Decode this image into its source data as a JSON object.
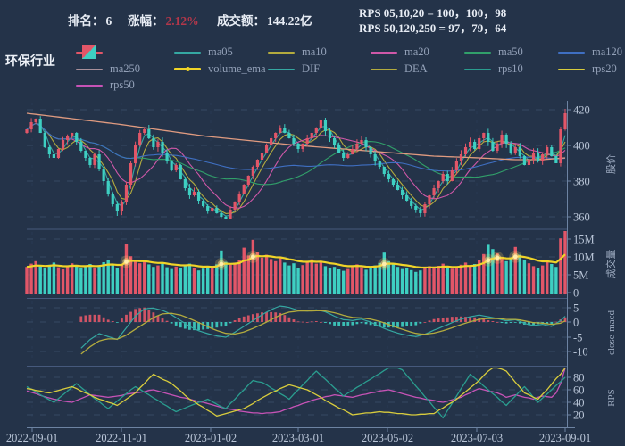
{
  "meta": {
    "series_title": "环保行业"
  },
  "header": {
    "rank_label": "排名：",
    "rank_value": "6",
    "change_label": "涨幅：",
    "change_value": "2.12%",
    "change_color": "#b3374a",
    "turnover_label": "成交额：",
    "turnover_value": "144.22亿",
    "rps_line1": "RPS 05,10,20 = 100，100，98",
    "rps_line2": "RPS 50,120,250 = 97，79，64"
  },
  "colors": {
    "background": "#243349",
    "up_candle": "#e25668",
    "down_candle": "#3ecfc2",
    "ma05": "#35a8a2",
    "ma10": "#b3ab3e",
    "ma20": "#cf58a8",
    "ma50": "#31a06a",
    "ma120": "#3f6fc2",
    "ma250": "#e09b80",
    "ma250_legend": "#a9909a",
    "volume_ema": "#f0d428",
    "dif": "#35a8a2",
    "dea": "#b3ab3e",
    "rps10": "#2a9d8f",
    "rps20": "#d8cc3d",
    "rps50": "#c653b6",
    "grid": "#3a4c68",
    "vgrid": "#2c3d58",
    "spine": "#6d83a2",
    "separator": "#46597c",
    "tick_text": "#b9c5d7"
  },
  "legend": {
    "items": [
      {
        "label": "",
        "kind": "candle",
        "row": 0,
        "col": 0
      },
      {
        "label": "ma05",
        "kind": "line",
        "color": "#35a8a2",
        "row": 0,
        "col": 1
      },
      {
        "label": "ma10",
        "kind": "line",
        "color": "#b3ab3e",
        "row": 0,
        "col": 2
      },
      {
        "label": "ma20",
        "kind": "line",
        "color": "#cf58a8",
        "row": 0,
        "col": 3
      },
      {
        "label": "ma50",
        "kind": "line",
        "color": "#31a06a",
        "row": 0,
        "col": 4
      },
      {
        "label": "ma120",
        "kind": "line",
        "color": "#3f6fc2",
        "row": 0,
        "col": 5
      },
      {
        "label": "ma250",
        "kind": "line",
        "color": "#a9909a",
        "row": 1,
        "col": 0
      },
      {
        "label": "volume_ema",
        "kind": "line-marker",
        "color": "#f0d428",
        "row": 1,
        "col": 1
      },
      {
        "label": "DIF",
        "kind": "line",
        "color": "#35a8a2",
        "row": 1,
        "col": 2
      },
      {
        "label": "DEA",
        "kind": "line",
        "color": "#b3ab3e",
        "row": 1,
        "col": 3
      },
      {
        "label": "rps10",
        "kind": "line",
        "color": "#2a9d8f",
        "row": 1,
        "col": 4
      },
      {
        "label": "rps20",
        "kind": "line",
        "color": "#d8cc3d",
        "row": 1,
        "col": 5
      },
      {
        "label": "rps50",
        "kind": "line",
        "color": "#c653b6",
        "row": 2,
        "col": 0
      }
    ]
  },
  "chart_data": {
    "type": "candlestick-multipanel",
    "x_tick_labels": [
      "2022-09-01",
      "2022-11-01",
      "2023-01-02",
      "2023-03-01",
      "2023-05-02",
      "2023-07-03",
      "2023-09-01"
    ],
    "panels": [
      {
        "name": "price",
        "axis_title": "股价",
        "y_ticks": [
          420,
          400,
          380,
          360
        ],
        "close": [
          409,
          413,
          415,
          407,
          399,
          395,
          393,
          398,
          403,
          405,
          407,
          402,
          397,
          393,
          389,
          395,
          387,
          380,
          373,
          367,
          363,
          368,
          378,
          390,
          400,
          407,
          409,
          404,
          399,
          402,
          396,
          391,
          386,
          389,
          381,
          376,
          372,
          374,
          369,
          366,
          363,
          365,
          362,
          360,
          359,
          364,
          368,
          373,
          378,
          383,
          388,
          392,
          396,
          400,
          404,
          407,
          410,
          407,
          404,
          401,
          398,
          401,
          404,
          407,
          410,
          414,
          408,
          404,
          400,
          396,
          393,
          395,
          398,
          401,
          403,
          399,
          395,
          391,
          388,
          384,
          381,
          378,
          375,
          372,
          369,
          366,
          364,
          362,
          367,
          372,
          376,
          380,
          384,
          380,
          386,
          391,
          395,
          399,
          402,
          398,
          404,
          407,
          402,
          397,
          401,
          406,
          401,
          396,
          399,
          394,
          389,
          392,
          396,
          391,
          395,
          399,
          394,
          390,
          409,
          418
        ],
        "ma_windows": {
          "ma05": 3,
          "ma10": 5,
          "ma20": 10,
          "ma50": 25,
          "ma120": 60
        },
        "ma250_keyframes": [
          [
            0,
            418
          ],
          [
            20,
            412
          ],
          [
            40,
            405
          ],
          [
            60,
            400
          ],
          [
            70,
            398
          ],
          [
            80,
            396
          ],
          [
            90,
            394
          ],
          [
            100,
            393
          ],
          [
            108,
            392
          ],
          [
            114,
            392
          ],
          [
            119,
            393
          ]
        ]
      },
      {
        "name": "volume",
        "axis_title": "成交量",
        "y_ticks": [
          "15M",
          "10M",
          "5M",
          "0"
        ],
        "volume_m": [
          7.2,
          8.1,
          8.8,
          7.5,
          6.9,
          7.8,
          8.4,
          7.1,
          6.5,
          7.3,
          8.2,
          7.6,
          6.8,
          7.4,
          8.0,
          6.9,
          7.7,
          8.5,
          9.2,
          8.0,
          7.0,
          7.8,
          13.5,
          10.2,
          9.0,
          8.2,
          8.8,
          7.9,
          7.2,
          7.6,
          8.4,
          7.1,
          6.6,
          7.3,
          6.8,
          7.5,
          8.1,
          6.9,
          6.2,
          6.7,
          7.4,
          6.8,
          7.9,
          11.8,
          8.6,
          7.8,
          8.4,
          9.2,
          12.6,
          10.4,
          14.8,
          11.5,
          9.8,
          10.6,
          9.4,
          8.8,
          9.6,
          8.4,
          7.6,
          8.2,
          7.0,
          7.7,
          8.5,
          9.3,
          8.1,
          8.9,
          7.4,
          6.8,
          7.2,
          6.5,
          6.1,
          6.6,
          7.3,
          7.9,
          7.1,
          6.4,
          6.9,
          7.6,
          8.3,
          11.2,
          8.8,
          7.9,
          7.2,
          6.6,
          7.0,
          6.3,
          5.8,
          6.2,
          6.8,
          7.4,
          6.9,
          7.5,
          8.1,
          7.3,
          6.7,
          7.2,
          7.8,
          8.4,
          7.6,
          8.0,
          9.2,
          10.8,
          13.4,
          12.2,
          11.0,
          9.6,
          8.8,
          9.4,
          12.8,
          10.6,
          9.0,
          8.2,
          7.4,
          6.8,
          7.6,
          8.8,
          8.0,
          7.2,
          15.2,
          17.6
        ],
        "ema_span": 12,
        "highlight_indices": [
          22,
          43,
          50,
          79,
          102,
          104,
          108
        ]
      },
      {
        "name": "macd",
        "axis_title": "close-macd",
        "y_ticks": [
          5,
          0,
          -5,
          -10
        ],
        "dif": [
          null,
          null,
          null,
          null,
          null,
          null,
          null,
          null,
          null,
          null,
          null,
          null,
          -9,
          -7.5,
          -6,
          -5,
          -4,
          -4.5,
          -5,
          -5.5,
          -6,
          -4,
          -2,
          0,
          2,
          3.3,
          4.5,
          4.7,
          4.8,
          4.4,
          4,
          3.3,
          2.5,
          1.5,
          0.5,
          -0.5,
          -1.5,
          -2.3,
          -3,
          -3.5,
          -4,
          -4.4,
          -4.8,
          -5,
          -5.2,
          -4.4,
          -3.5,
          -2.5,
          -1.5,
          -0.5,
          0.5,
          1.5,
          2.5,
          3.4,
          4.2,
          4.9,
          5.5,
          5.3,
          5,
          4.5,
          4,
          3.9,
          3.8,
          4,
          4.2,
          3.9,
          3.5,
          2.8,
          2,
          1.4,
          0.8,
          0.7,
          0.5,
          0.8,
          1,
          0.5,
          0,
          -0.8,
          -1.5,
          -2.2,
          -2.8,
          -3.3,
          -3.8,
          -4.2,
          -4.5,
          -4.8,
          -5,
          -4.6,
          -4.2,
          -3.5,
          -2.8,
          -2.2,
          -1.5,
          -0.9,
          -0.2,
          0.4,
          1,
          1.4,
          1.8,
          2.1,
          2.4,
          2.1,
          1.8,
          1.5,
          1.2,
          0.8,
          0.4,
          0.6,
          0.8,
          0.2,
          -0.5,
          -0.9,
          -1.2,
          -1,
          -0.8,
          -1.2,
          -1.5,
          -0.5,
          0.5,
          2
        ],
        "dea": [
          null,
          null,
          null,
          null,
          null,
          null,
          null,
          null,
          null,
          null,
          null,
          null,
          -11,
          -9.8,
          -8.5,
          -7.5,
          -6.5,
          -6.1,
          -5.8,
          -5.8,
          -5.9,
          -5.2,
          -4.5,
          -3.5,
          -2.5,
          -1.5,
          -0.5,
          0.5,
          1.5,
          2.2,
          2.8,
          2.9,
          3,
          2.7,
          2.4,
          1.8,
          1.2,
          0.5,
          -0.2,
          -0.9,
          -1.6,
          -2.3,
          -2.9,
          -3.4,
          -3.9,
          -4,
          -4.1,
          -3.8,
          -3.4,
          -2.8,
          -2.2,
          -1.5,
          -0.8,
          0,
          0.8,
          1.6,
          2.4,
          2.9,
          3.4,
          3.6,
          3.8,
          3.8,
          3.8,
          3.8,
          3.9,
          3.9,
          3.8,
          3.5,
          3.2,
          2.8,
          2.3,
          1.9,
          1.6,
          1.5,
          1.4,
          1.2,
          1,
          0.6,
          0.2,
          -0.3,
          -0.9,
          -1.4,
          -2,
          -2.5,
          -3,
          -3.5,
          -3.9,
          -4.1,
          -4.2,
          -4,
          -3.8,
          -3.4,
          -3,
          -2.5,
          -2,
          -1.4,
          -0.9,
          -0.4,
          0.1,
          0.5,
          0.9,
          1.1,
          1.2,
          1.2,
          1.2,
          1.1,
          0.9,
          0.9,
          0.9,
          0.7,
          0.4,
          0.1,
          -0.2,
          -0.3,
          -0.4,
          -0.6,
          -0.8,
          -0.6,
          -0.4,
          0.4
        ]
      },
      {
        "name": "rps",
        "axis_title": "RPS",
        "y_ticks": [
          80,
          60,
          40,
          20
        ],
        "rps10": [
          65,
          61,
          57,
          52,
          48,
          44,
          40,
          46,
          52,
          58,
          64,
          70,
          64,
          58,
          52,
          46,
          41,
          35,
          30,
          36,
          42,
          48,
          54,
          60,
          65,
          61,
          56,
          52,
          47,
          43,
          38,
          34,
          29,
          25,
          28,
          31,
          34,
          37,
          40,
          42,
          45,
          41,
          37,
          33,
          30,
          38,
          45,
          53,
          60,
          68,
          75,
          73,
          72,
          68,
          63,
          59,
          54,
          50,
          45,
          53,
          60,
          68,
          75,
          83,
          90,
          83,
          77,
          70,
          63,
          57,
          50,
          55,
          59,
          64,
          68,
          73,
          77,
          82,
          86,
          91,
          95,
          97,
          100,
          92,
          83,
          75,
          66,
          58,
          49,
          41,
          32,
          24,
          15,
          27,
          38,
          50,
          62,
          73,
          85,
          79,
          73,
          66,
          60,
          54,
          48,
          41,
          35,
          43,
          50,
          58,
          65,
          57,
          48,
          40,
          47,
          53,
          60,
          67,
          73,
          80
        ],
        "rps20": [
          62,
          61,
          59,
          58,
          56,
          55,
          57,
          59,
          61,
          63,
          65,
          62,
          58,
          55,
          52,
          48,
          45,
          43,
          40,
          38,
          35,
          40,
          45,
          50,
          55,
          63,
          70,
          78,
          85,
          81,
          77,
          74,
          70,
          64,
          58,
          51,
          45,
          41,
          36,
          32,
          27,
          23,
          18,
          20,
          22,
          24,
          26,
          28,
          30,
          34,
          38,
          43,
          47,
          51,
          55,
          58,
          62,
          65,
          68,
          66,
          64,
          62,
          60,
          56,
          52,
          48,
          43,
          39,
          35,
          31,
          28,
          24,
          20,
          21,
          22,
          23,
          23,
          24,
          25,
          24,
          24,
          23,
          22,
          22,
          21,
          20,
          20,
          21,
          21,
          22,
          22,
          27,
          31,
          36,
          40,
          45,
          51,
          57,
          63,
          69,
          75,
          83,
          90,
          98,
          95,
          93,
          90,
          81,
          72,
          64,
          55,
          52,
          48,
          45,
          53,
          60,
          69,
          78,
          85,
          98
        ],
        "rps50": [
          58,
          56,
          54,
          51,
          49,
          47,
          45,
          44,
          42,
          41,
          40,
          43,
          46,
          49,
          52,
          51,
          50,
          49,
          48,
          49,
          50,
          51,
          53,
          54,
          55,
          56,
          57,
          59,
          60,
          58,
          56,
          54,
          52,
          50,
          48,
          47,
          45,
          43,
          41,
          40,
          38,
          36,
          34,
          32,
          30,
          29,
          28,
          26,
          25,
          24,
          23,
          23,
          22,
          23,
          23,
          24,
          25,
          28,
          30,
          33,
          35,
          38,
          40,
          43,
          45,
          47,
          49,
          50,
          52,
          51,
          50,
          49,
          48,
          50,
          52,
          53,
          55,
          56,
          58,
          59,
          60,
          58,
          56,
          54,
          52,
          50,
          48,
          47,
          45,
          44,
          43,
          41,
          40,
          42,
          44,
          46,
          48,
          52,
          55,
          59,
          62,
          60,
          58,
          57,
          55,
          52,
          48,
          50,
          52,
          50,
          48,
          47,
          45,
          48,
          50,
          49,
          48,
          55,
          70,
          97
        ]
      }
    ]
  }
}
